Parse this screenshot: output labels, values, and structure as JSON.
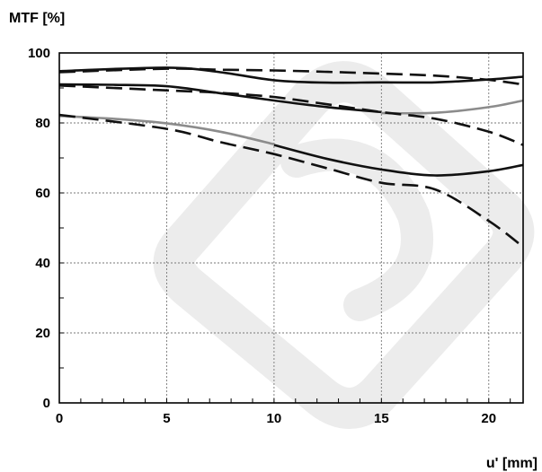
{
  "chart_data": {
    "type": "line",
    "ylabel": "MTF [%]",
    "xlabel": "u' [mm]",
    "xlim": [
      0,
      21.6
    ],
    "ylim": [
      0,
      100
    ],
    "xticks": [
      0,
      5,
      10,
      15,
      20
    ],
    "yticks": [
      0,
      20,
      40,
      60,
      80,
      100
    ],
    "grid": true,
    "series": [
      {
        "style": "solid",
        "color": "#111111",
        "x": [
          0,
          5,
          7.5,
          10,
          12.5,
          15,
          17.5,
          20,
          21.6
        ],
        "y": [
          94.8,
          95.8,
          94.5,
          92.2,
          91.5,
          91.6,
          91.6,
          92.4,
          93.2
        ]
      },
      {
        "style": "dashed",
        "color": "#111111",
        "x": [
          0,
          5,
          7.5,
          10,
          12.5,
          15,
          17.5,
          20,
          21.6
        ],
        "y": [
          94.5,
          95.5,
          95.2,
          95.0,
          94.6,
          94.1,
          93.5,
          92.3,
          91.0
        ]
      },
      {
        "style": "solid",
        "color": "#111111",
        "x": [
          0,
          2.5,
          5,
          7.5,
          10,
          12.5,
          15
        ],
        "y": [
          91.0,
          90.9,
          90.5,
          88.5,
          86.4,
          84.5,
          83.1
        ]
      },
      {
        "style": "solid",
        "color": "#8c8c8c",
        "x": [
          15,
          17.5,
          20,
          21.6
        ],
        "y": [
          82.8,
          82.9,
          84.5,
          86.4
        ]
      },
      {
        "style": "dashed",
        "color": "#111111",
        "x": [
          0,
          5,
          7.5,
          10,
          12.5,
          15,
          17.5,
          20,
          21.6
        ],
        "y": [
          90.7,
          89.3,
          88.6,
          87.4,
          85.3,
          83.1,
          81.2,
          77.5,
          73.7
        ]
      },
      {
        "style": "solid",
        "color": "#8c8c8c",
        "x": [
          0,
          2.5,
          5,
          7.5,
          10
        ],
        "y": [
          82.0,
          81.2,
          79.9,
          77.5,
          73.9
        ]
      },
      {
        "style": "solid",
        "color": "#111111",
        "x": [
          10,
          12.5,
          15,
          17.5,
          20,
          21.6
        ],
        "y": [
          73.7,
          69.7,
          66.7,
          65.0,
          66.2,
          68.0
        ]
      },
      {
        "style": "dashed",
        "color": "#111111",
        "x": [
          0,
          5,
          7.5,
          10,
          12.5,
          15,
          17.5,
          20,
          21.6
        ],
        "y": [
          82.3,
          78.3,
          74.5,
          71.1,
          67.0,
          62.9,
          61.0,
          52.0,
          44.6
        ]
      }
    ]
  }
}
